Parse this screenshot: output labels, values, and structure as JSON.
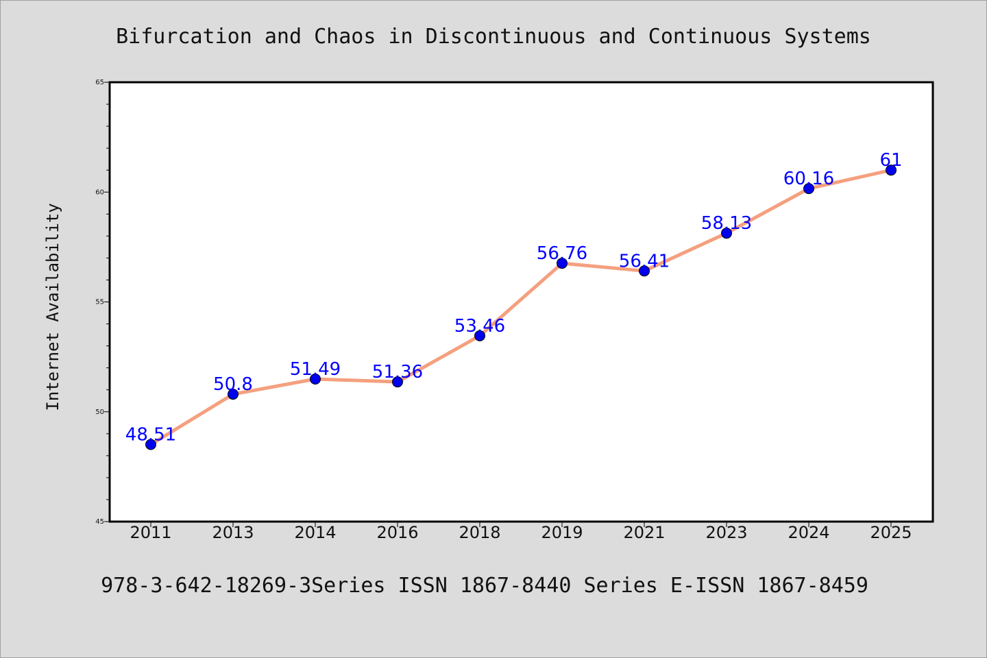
{
  "chart_data": {
    "type": "line",
    "title": "Bifurcation and Chaos in Discontinuous and Continuous Systems",
    "ylabel": "Internet Availability",
    "xlabel": "",
    "footer": "978-3-642-18269-3Series ISSN 1867-8440 Series E-ISSN 1867-8459",
    "categories": [
      "2011",
      "2013",
      "2014",
      "2016",
      "2018",
      "2019",
      "2021",
      "2023",
      "2024",
      "2025"
    ],
    "values": [
      48.51,
      50.8,
      51.49,
      51.36,
      53.46,
      56.76,
      56.41,
      58.13,
      60.16,
      61
    ],
    "data_labels": [
      "48.51",
      "50.8",
      "51.49",
      "51.36",
      "53.46",
      "56.76",
      "56.41",
      "58.13",
      "60.16",
      "61"
    ],
    "ylim": [
      45,
      65
    ],
    "yticks": [
      "45",
      "50",
      "55",
      "60",
      "65"
    ],
    "grid": false,
    "legend": "none",
    "colors": {
      "line": "#f4a07f",
      "marker": "#0000ee",
      "label": "#0000ff",
      "background": "#dcdcdc",
      "plot_background": "#ffffff"
    }
  }
}
